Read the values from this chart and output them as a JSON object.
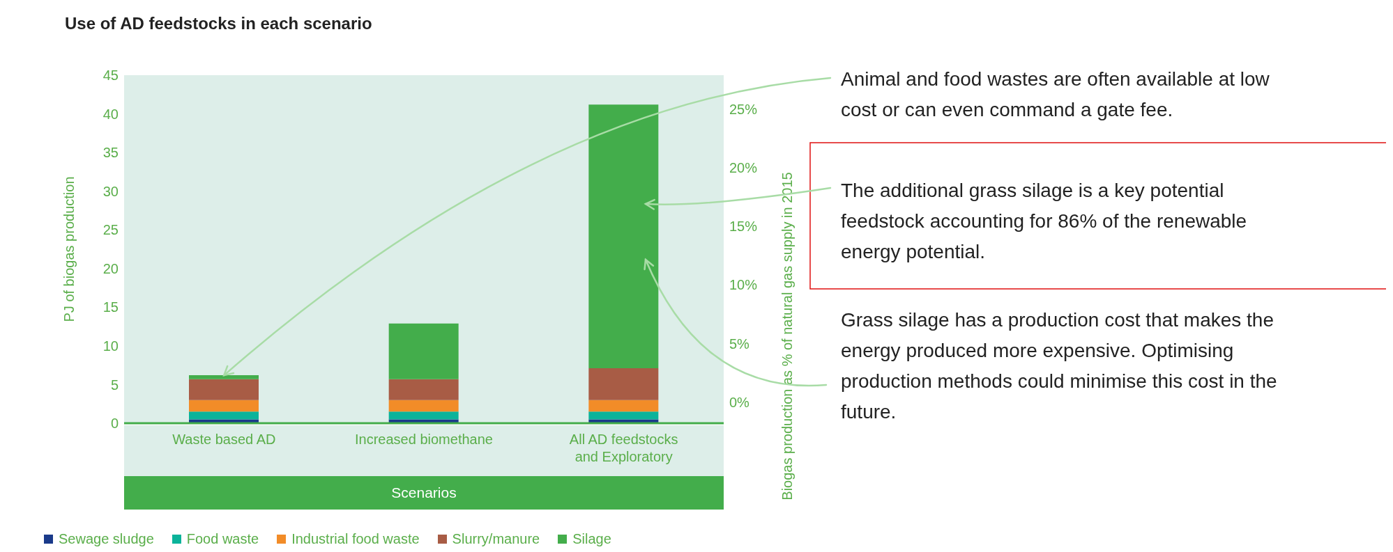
{
  "chart_data": {
    "type": "bar",
    "title": "Use of AD feedstocks in each scenario",
    "xlabel": "Scenarios",
    "ylabel": "PJ of biogas production",
    "y2label": "Biogas production as % of natural gas supply in 2015",
    "categories": [
      "Waste based AD",
      "Increased biomethane",
      "All AD feedstocks and Exploratory"
    ],
    "stacked": true,
    "series": [
      {
        "name": "Sewage sludge",
        "color": "#1a3a8a",
        "values": [
          0.5,
          0.5,
          0.5
        ]
      },
      {
        "name": "Food waste",
        "color": "#0bb39a",
        "values": [
          1,
          1,
          1
        ]
      },
      {
        "name": "Industrial food waste",
        "color": "#f28c28",
        "values": [
          1.5,
          1.5,
          1.5
        ]
      },
      {
        "name": "Slurry/manure",
        "color": "#a85c45",
        "values": [
          2.7,
          2.7,
          4.1
        ]
      },
      {
        "name": "Silage",
        "color": "#43ad4b",
        "values": [
          0.5,
          7.2,
          34.1
        ]
      }
    ],
    "ylim": [
      0,
      45
    ],
    "yticks": [
      0,
      5,
      10,
      15,
      20,
      25,
      30,
      35,
      40,
      45
    ],
    "y2lim": [
      -1.8,
      27.9
    ],
    "y2ticks": [
      {
        "value": 0,
        "label": "0%"
      },
      {
        "value": 5,
        "label": "5%"
      },
      {
        "value": 10,
        "label": "10%"
      },
      {
        "value": 15,
        "label": "15%"
      },
      {
        "value": 20,
        "label": "20%"
      },
      {
        "value": 25,
        "label": "25%"
      }
    ],
    "legend": "bottom",
    "annotations": [
      {
        "text": "Animal and food wastes are often available at low cost or can even command a gate fee.",
        "x": "Waste based AD",
        "y": 6.2
      },
      "The additional grass silage is a key potential feedstock accounting for 86% of the renewable energy potential.",
      "Grass silage has a production cost that makes the energy produced more expensive. Optimising production methods could minimise this cost in the future."
    ]
  }
}
